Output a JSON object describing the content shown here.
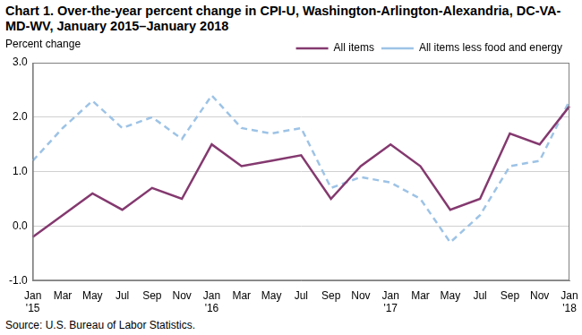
{
  "chart_data": {
    "type": "line",
    "title": "Chart 1. Over-the-year percent change in CPI-U, Washington-Arlington-Alexandria, DC-VA-MD-WV, January 2015–January 2018",
    "y_label": "Percent change",
    "source": "Source: U.S. Bureau of Labor Statistics.",
    "categories": [
      "Jan '15",
      "Mar",
      "May",
      "Jul",
      "Sep",
      "Nov",
      "Jan '16",
      "Mar",
      "May",
      "Jul",
      "Sep",
      "Nov",
      "Jan '17",
      "Mar",
      "May",
      "Jul",
      "Sep",
      "Nov",
      "Jan '18"
    ],
    "series": [
      {
        "name": "All items",
        "color": "#84396f",
        "line_style": "solid",
        "values": [
          -0.2,
          0.2,
          0.6,
          0.3,
          0.7,
          0.5,
          1.5,
          1.1,
          1.2,
          1.3,
          0.5,
          1.1,
          1.5,
          1.1,
          0.3,
          0.5,
          1.7,
          1.5,
          2.2
        ]
      },
      {
        "name": "All items less food and energy",
        "color": "#9dc3e6",
        "line_style": "dashed",
        "values": [
          1.2,
          1.8,
          2.3,
          1.8,
          2.0,
          1.6,
          2.4,
          1.8,
          1.7,
          1.8,
          0.7,
          0.9,
          0.8,
          0.5,
          -0.3,
          0.2,
          1.1,
          1.2,
          2.3
        ]
      }
    ],
    "ylim": [
      -1,
      3
    ],
    "yticks": [
      {
        "value": -1,
        "label": "-1.0"
      },
      {
        "value": 0,
        "label": "0.0"
      },
      {
        "value": 1,
        "label": "1.0"
      },
      {
        "value": 2,
        "label": "2.0"
      },
      {
        "value": 3,
        "label": "3.0"
      }
    ],
    "grid": true,
    "legend": "top-right",
    "marker": "none"
  }
}
